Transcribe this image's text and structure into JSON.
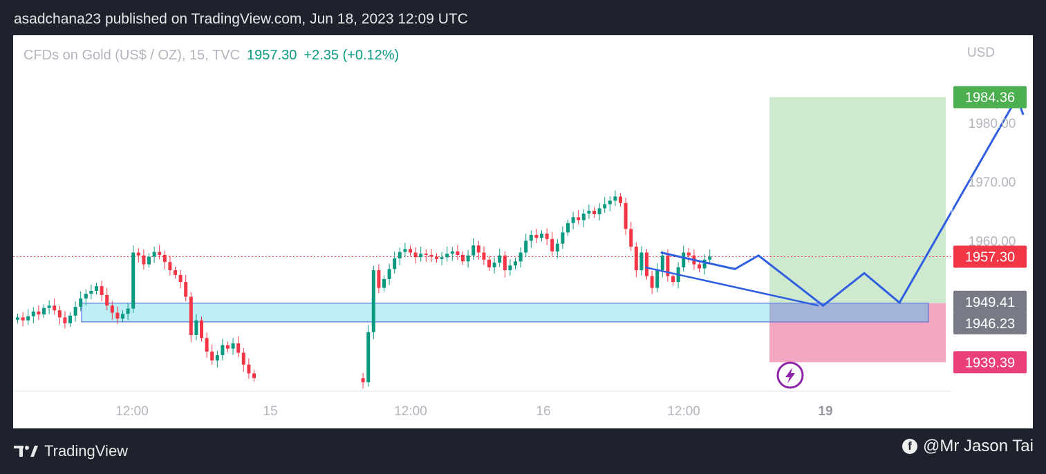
{
  "header": {
    "published": "asadchana23 published on TradingView.com, Jun 18, 2023 12:09 UTC"
  },
  "legend": {
    "symbol": "CFDs on Gold (US$ / OZ), 15, TVC",
    "price": "1957.30",
    "change": "+2.35 (+0.12%)"
  },
  "currency": "USD",
  "footer": {
    "brand": "TradingView",
    "credit": "@Mr Jason Tai"
  },
  "colors": {
    "up": "#089981",
    "down": "#f23645",
    "profit_zone": "#cfe9cf",
    "loss_zone": "#f4a7c3",
    "zone_box": "#b3ebf2",
    "projection": "#2f5fe0",
    "tp_label": "#4caf50",
    "last_label": "#f23645",
    "entry_label": "#787b86",
    "sl_label": "#ea3f79"
  },
  "chart_data": {
    "type": "candlestick",
    "title": "",
    "symbol": "CFDs on Gold (US$ / OZ)",
    "timeframe": "15",
    "ylim": [
      1934.5,
      1989
    ],
    "y_ticks": [
      1960.0,
      1970.0,
      1980.0
    ],
    "x_ticks": [
      "12:00",
      "15",
      "12:00",
      "16",
      "12:00",
      "19"
    ],
    "last_price": 1957.3,
    "price_labels": [
      {
        "value": 1984.36,
        "role": "take-profit"
      },
      {
        "value": 1957.3,
        "role": "last-price"
      },
      {
        "value": 1949.41,
        "role": "entry"
      },
      {
        "value": 1946.23,
        "role": "zone-bottom"
      },
      {
        "value": 1939.39,
        "role": "stop-loss"
      }
    ],
    "demand_zone": [
      1946.23,
      1949.41
    ],
    "position": {
      "type": "long",
      "entry": 1949.41,
      "take_profit": 1984.36,
      "stop_loss": 1939.39
    },
    "close_series": [
      1947.0,
      1946.5,
      1947.2,
      1948.0,
      1947.5,
      1948.6,
      1949.0,
      1948.2,
      1947.0,
      1946.0,
      1947.3,
      1948.8,
      1950.2,
      1951.0,
      1951.5,
      1952.3,
      1950.8,
      1949.0,
      1947.8,
      1946.8,
      1947.6,
      1948.5,
      1958.0,
      1957.5,
      1956.0,
      1957.3,
      1958.1,
      1957.6,
      1956.4,
      1955.0,
      1954.2,
      1953.0,
      1950.5,
      1944.0,
      1946.5,
      1943.5,
      1941.2,
      1939.7,
      1940.6,
      1942.3,
      1941.7,
      1942.6,
      1941.0,
      1939.0,
      1937.5,
      1936.7,
      1936.0,
      1944.5,
      1955.0,
      1952.0,
      1953.5,
      1955.2,
      1957.0,
      1958.1,
      1958.6,
      1958.0,
      1957.2,
      1957.8,
      1957.6,
      1957.3,
      1956.9,
      1957.2,
      1957.8,
      1958.2,
      1957.6,
      1956.5,
      1957.5,
      1959.2,
      1958.0,
      1956.8,
      1955.5,
      1956.3,
      1957.5,
      1955.0,
      1955.8,
      1956.5,
      1958.0,
      1960.0,
      1961.0,
      1960.5,
      1961.2,
      1960.3,
      1958.2,
      1959.5,
      1961.4,
      1963.0,
      1964.0,
      1963.5,
      1964.6,
      1965.1,
      1964.5,
      1965.5,
      1966.2,
      1966.8,
      1967.5,
      1966.4,
      1962.0,
      1959.0,
      1955.0,
      1958.0,
      1954.0,
      1952.0,
      1955.0,
      1957.5,
      1954.0,
      1953.0,
      1955.5,
      1958.0,
      1957.5,
      1956.0,
      1955.3,
      1956.8,
      1957.3
    ],
    "projection_path": [
      {
        "x_index": 103,
        "y": 1958.0
      },
      {
        "x_index": 117,
        "y": 1955.2
      },
      {
        "x_index": 121,
        "y": 1957.5
      },
      {
        "x_index": 132,
        "y": 1949.0
      },
      {
        "x_index": 139,
        "y": 1954.5
      },
      {
        "x_index": 145,
        "y": 1949.5
      },
      {
        "x_index": 165,
        "y": 1984.3
      }
    ]
  }
}
